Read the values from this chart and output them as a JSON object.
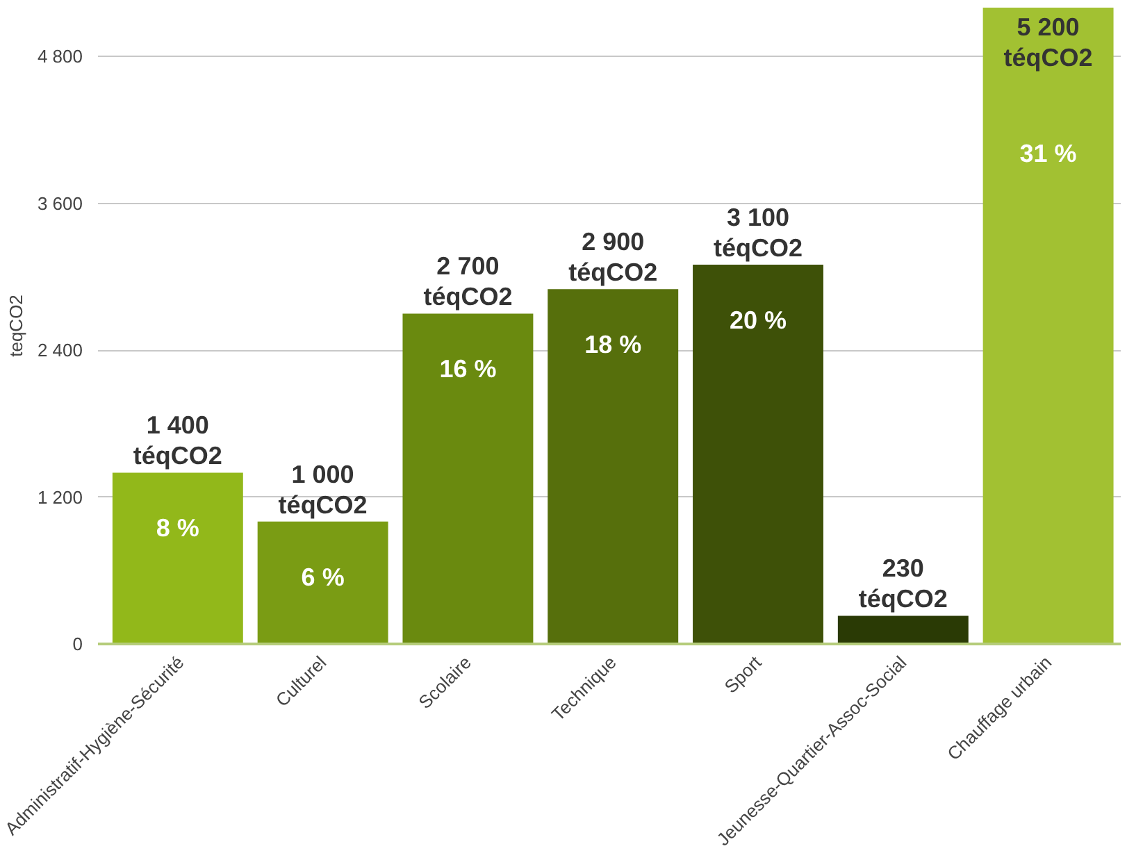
{
  "chart_data": {
    "type": "bar",
    "ylabel": "teqCO2",
    "categories": [
      "Administratif-Hygiène-Sécurité",
      "Culturel",
      "Scolaire",
      "Technique",
      "Sport",
      "Jeunesse-Quartier-Assoc-Social",
      "Chauffage urbain"
    ],
    "values": [
      1400,
      1000,
      2700,
      2900,
      3100,
      230,
      5200
    ],
    "colors": [
      "#92b81a",
      "#7a9c14",
      "#6a8a0f",
      "#566f0c",
      "#3e5108",
      "#2a3a05",
      "#a2c132"
    ],
    "value_labels": [
      "1 400\ntéqCO2",
      "1 000\ntéqCO2",
      "2 700\ntéqCO2",
      "2 900\ntéqCO2",
      "3 100\ntéqCO2",
      "230\ntéqCO2",
      "5 200\ntéqCO2"
    ],
    "annotations": [
      "8 %",
      "6 %",
      "16 %",
      "18 %",
      "20 %",
      "31 %"
    ],
    "ylim": [
      0,
      5200
    ],
    "yticks": [
      {
        "value": 0,
        "label": "0"
      },
      {
        "value": 1200,
        "label": "1 200"
      },
      {
        "value": 2400,
        "label": "2 400"
      },
      {
        "value": 3600,
        "label": "3 600"
      },
      {
        "value": 4800,
        "label": "4 800"
      }
    ],
    "grid": "y"
  }
}
